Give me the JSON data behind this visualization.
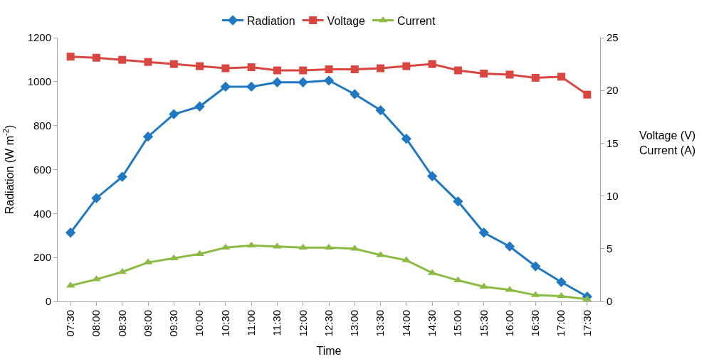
{
  "chart_data": {
    "type": "line",
    "xlabel": "Time",
    "ylabel": "Radiation (W m$^{-2}$)",
    "y2label": "Voltage (V)\nCurrent (A)",
    "categories": [
      "07:30",
      "08:00",
      "08:30",
      "09:00",
      "09:30",
      "10:00",
      "10:30",
      "11:00",
      "11:30",
      "12:00",
      "12:30",
      "13:00",
      "13:30",
      "14:00",
      "14:30",
      "15:00",
      "15:30",
      "16:00",
      "16:30",
      "17:00",
      "17:30"
    ],
    "series": [
      {
        "name": "Radiation",
        "color": "#1f78c1",
        "marker": "diamond",
        "values": [
          313,
          470,
          567,
          750,
          852,
          887,
          977,
          977,
          997,
          997,
          1005,
          943,
          870,
          740,
          570,
          455,
          313,
          250,
          160,
          88,
          22
        ]
      },
      {
        "name": "Voltage",
        "color": "#d9453f",
        "marker": "square",
        "axis": "y2",
        "values": [
          23.2,
          23.1,
          22.9,
          22.7,
          22.5,
          22.3,
          22.1,
          22.2,
          21.9,
          21.9,
          22.0,
          22.0,
          22.1,
          22.3,
          22.5,
          21.9,
          21.6,
          21.5,
          21.2,
          21.3,
          19.6
        ]
      },
      {
        "name": "Current",
        "color": "#8cbb45",
        "marker": "triangle",
        "axis": "y2",
        "values": [
          1.5,
          2.1,
          2.8,
          3.7,
          4.1,
          4.5,
          5.1,
          5.3,
          5.2,
          5.1,
          5.1,
          5.0,
          4.4,
          3.9,
          2.7,
          2.0,
          1.4,
          1.1,
          0.6,
          0.5,
          0.2
        ]
      }
    ],
    "ylim": [
      0,
      1200
    ],
    "yticks": [
      0,
      200,
      400,
      600,
      800,
      1000,
      1200
    ],
    "y2lim": [
      0,
      25
    ],
    "y2ticks": [
      0,
      5,
      10,
      15,
      20,
      25
    ],
    "legend": "top"
  }
}
